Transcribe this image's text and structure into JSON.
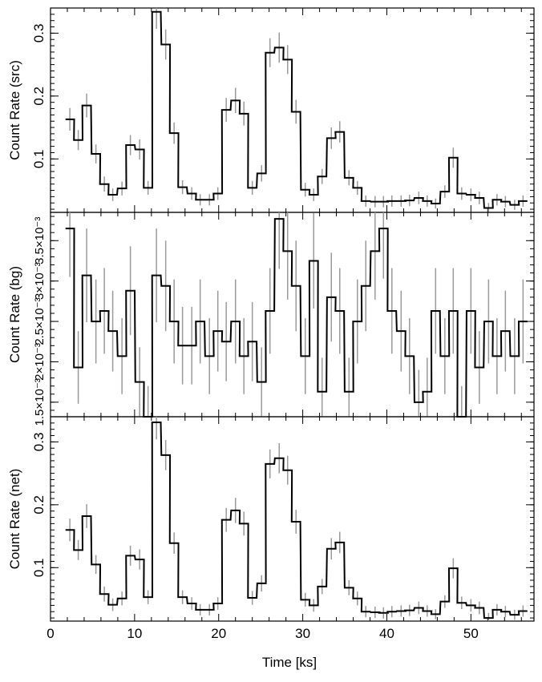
{
  "chart_data": {
    "type": "line",
    "x_label": "Time [ks]",
    "x_range": [
      0,
      57.5
    ],
    "x_tick_labels": [
      "0",
      "10",
      "20",
      "30",
      "40",
      "50"
    ],
    "x_major": [
      0,
      10,
      20,
      30,
      40,
      50
    ],
    "bin_width": 1.03,
    "x": [
      2.3,
      3.3,
      4.3,
      5.4,
      6.4,
      7.4,
      8.5,
      9.5,
      10.6,
      11.6,
      12.6,
      13.7,
      14.7,
      15.7,
      16.8,
      17.8,
      18.9,
      19.9,
      20.9,
      22.0,
      23.0,
      24.0,
      25.1,
      26.1,
      27.2,
      28.2,
      29.2,
      30.3,
      31.3,
      32.3,
      33.4,
      34.4,
      35.5,
      36.5,
      37.5,
      38.6,
      39.6,
      40.6,
      41.7,
      42.7,
      43.8,
      44.8,
      45.8,
      46.9,
      47.9,
      48.9,
      50.0,
      51.0,
      52.1,
      53.1,
      54.1,
      55.2,
      56.2
    ],
    "panels": [
      {
        "ylabel": "Count Rate (src)",
        "ylim": [
          0.015,
          0.34
        ],
        "y_major": [
          0.1,
          0.2,
          0.3
        ],
        "y_tick_labels": [
          "0.1",
          "0.2",
          "0.3"
        ],
        "values": [
          0.163,
          0.13,
          0.185,
          0.108,
          0.06,
          0.043,
          0.053,
          0.122,
          0.115,
          0.054,
          0.334,
          0.282,
          0.141,
          0.055,
          0.045,
          0.035,
          0.035,
          0.045,
          0.178,
          0.193,
          0.172,
          0.054,
          0.077,
          0.269,
          0.277,
          0.258,
          0.175,
          0.051,
          0.043,
          0.072,
          0.133,
          0.143,
          0.07,
          0.054,
          0.033,
          0.032,
          0.032,
          0.033,
          0.033,
          0.034,
          0.038,
          0.033,
          0.029,
          0.048,
          0.102,
          0.045,
          0.043,
          0.038,
          0.022,
          0.035,
          0.032,
          0.027,
          0.033
        ],
        "errors": [
          0.018,
          0.016,
          0.019,
          0.015,
          0.012,
          0.01,
          0.011,
          0.016,
          0.016,
          0.011,
          0.027,
          0.024,
          0.017,
          0.011,
          0.01,
          0.009,
          0.009,
          0.01,
          0.019,
          0.02,
          0.019,
          0.011,
          0.013,
          0.023,
          0.024,
          0.023,
          0.019,
          0.011,
          0.01,
          0.012,
          0.017,
          0.017,
          0.012,
          0.011,
          0.009,
          0.009,
          0.009,
          0.009,
          0.009,
          0.009,
          0.01,
          0.009,
          0.008,
          0.01,
          0.016,
          0.01,
          0.01,
          0.01,
          0.008,
          0.009,
          0.009,
          0.008,
          0.009
        ]
      },
      {
        "ylabel": "Count Rate (bg)",
        "ylim": [
          0.00132,
          0.00385
        ],
        "y_major": [
          0.0015,
          0.002,
          0.0025,
          0.003,
          0.0035
        ],
        "y_tick_labels": [
          "1.5×10⁻³",
          "2×10⁻³",
          "2.5×10⁻³",
          "3×10⁻³",
          "3.5×10⁻³"
        ],
        "values": [
          0.00365,
          0.00193,
          0.00307,
          0.0025,
          0.00263,
          0.00238,
          0.00207,
          0.00288,
          0.00175,
          0.00132,
          0.00307,
          0.00294,
          0.0025,
          0.0022,
          0.0022,
          0.0025,
          0.00207,
          0.00238,
          0.00225,
          0.0025,
          0.00207,
          0.00225,
          0.00175,
          0.00263,
          0.00377,
          0.00337,
          0.00294,
          0.00207,
          0.00325,
          0.00163,
          0.0028,
          0.00263,
          0.00163,
          0.0025,
          0.00294,
          0.00337,
          0.00365,
          0.00263,
          0.00238,
          0.00207,
          0.0015,
          0.00163,
          0.00263,
          0.00207,
          0.00263,
          0.00132,
          0.00263,
          0.00193,
          0.0025,
          0.00207,
          0.00238,
          0.00207,
          0.0025
        ],
        "errors": [
          0.0006,
          0.00045,
          0.00058,
          0.00052,
          0.00053,
          0.0005,
          0.00047,
          0.00055,
          0.00043,
          0.00038,
          0.00058,
          0.00056,
          0.00052,
          0.00048,
          0.00048,
          0.00052,
          0.00047,
          0.0005,
          0.00049,
          0.00052,
          0.00047,
          0.00049,
          0.00043,
          0.00053,
          0.00062,
          0.0006,
          0.00056,
          0.00047,
          0.00059,
          0.00042,
          0.00055,
          0.00053,
          0.00042,
          0.00052,
          0.00056,
          0.0006,
          0.00062,
          0.00053,
          0.0005,
          0.00047,
          0.0004,
          0.00042,
          0.00053,
          0.00047,
          0.00053,
          0.00038,
          0.00053,
          0.00045,
          0.00052,
          0.00047,
          0.0005,
          0.00047,
          0.00052
        ]
      },
      {
        "ylabel": "Count Rate (net)",
        "ylim": [
          0.015,
          0.34
        ],
        "y_major": [
          0.1,
          0.2,
          0.3
        ],
        "y_tick_labels": [
          "0.1",
          "0.2",
          "0.3"
        ],
        "values": [
          0.16,
          0.128,
          0.182,
          0.105,
          0.058,
          0.041,
          0.051,
          0.119,
          0.113,
          0.053,
          0.331,
          0.279,
          0.139,
          0.053,
          0.043,
          0.033,
          0.033,
          0.043,
          0.176,
          0.191,
          0.17,
          0.052,
          0.075,
          0.265,
          0.274,
          0.255,
          0.173,
          0.049,
          0.04,
          0.07,
          0.13,
          0.14,
          0.068,
          0.051,
          0.03,
          0.029,
          0.028,
          0.03,
          0.031,
          0.032,
          0.036,
          0.031,
          0.026,
          0.046,
          0.099,
          0.044,
          0.04,
          0.036,
          0.02,
          0.033,
          0.03,
          0.025,
          0.031
        ],
        "errors": [
          0.018,
          0.016,
          0.019,
          0.015,
          0.012,
          0.01,
          0.011,
          0.016,
          0.016,
          0.011,
          0.027,
          0.024,
          0.017,
          0.011,
          0.01,
          0.009,
          0.009,
          0.01,
          0.019,
          0.02,
          0.019,
          0.011,
          0.013,
          0.023,
          0.024,
          0.023,
          0.019,
          0.011,
          0.01,
          0.012,
          0.017,
          0.017,
          0.012,
          0.011,
          0.009,
          0.009,
          0.009,
          0.009,
          0.009,
          0.009,
          0.01,
          0.009,
          0.008,
          0.01,
          0.016,
          0.01,
          0.01,
          0.01,
          0.008,
          0.009,
          0.009,
          0.008,
          0.009
        ]
      }
    ],
    "colors": {
      "histogram": "#000000",
      "errorbars": "#9a9a9a"
    },
    "grid": false
  }
}
